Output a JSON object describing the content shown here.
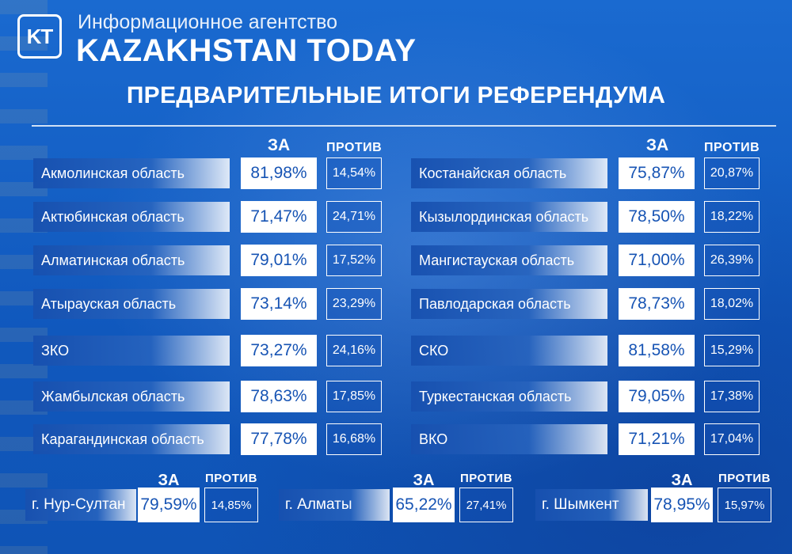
{
  "header": {
    "logo": "KT",
    "agency": "Информационное агентство",
    "brand": "KAZAKHSTAN TODAY",
    "headline": "ПРЕДВАРИТЕЛЬНЫЕ ИТОГИ РЕФЕРЕНДУМА"
  },
  "columns": {
    "za": "ЗА",
    "protiv": "ПРОТИВ"
  },
  "left": [
    {
      "name": "Акмолинская область",
      "za": "81,98%",
      "protiv": "14,54%"
    },
    {
      "name": "Актюбинская область",
      "za": "71,47%",
      "protiv": "24,71%"
    },
    {
      "name": "Алматинская область",
      "za": "79,01%",
      "protiv": "17,52%"
    },
    {
      "name": "Атырауская область",
      "za": "73,14%",
      "protiv": "23,29%"
    },
    {
      "name": "ЗКО",
      "za": "73,27%",
      "protiv": "24,16%"
    },
    {
      "name": "Жамбылская область",
      "za": "78,63%",
      "protiv": "17,85%"
    },
    {
      "name": "Карагандинская область",
      "za": "77,78%",
      "protiv": "16,68%"
    }
  ],
  "right": [
    {
      "name": "Костанайская область",
      "za": "75,87%",
      "protiv": "20,87%"
    },
    {
      "name": "Кызылординская область",
      "za": "78,50%",
      "protiv": "18,22%"
    },
    {
      "name": "Мангистауская область",
      "za": "71,00%",
      "protiv": "26,39%"
    },
    {
      "name": "Павлодарская область",
      "za": "78,73%",
      "protiv": "18,02%"
    },
    {
      "name": "СКО",
      "za": "81,58%",
      "protiv": "15,29%"
    },
    {
      "name": "Туркестанская область",
      "za": "79,05%",
      "protiv": "17,38%"
    },
    {
      "name": "ВКО",
      "za": "71,21%",
      "protiv": "17,04%"
    }
  ],
  "cities": [
    {
      "name": "г. Нур-Султан",
      "za": "79,59%",
      "protiv": "14,85%"
    },
    {
      "name": "г. Алматы",
      "za": "65,22%",
      "protiv": "27,41%"
    },
    {
      "name": "г. Шымкент",
      "za": "78,95%",
      "protiv": "15,97%"
    }
  ]
}
